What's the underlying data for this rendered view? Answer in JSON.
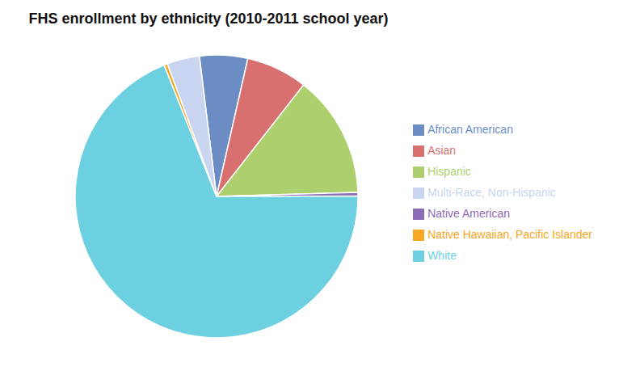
{
  "chart_data": {
    "type": "pie",
    "title": "FHS enrollment by ethnicity (2010-2011 school year)",
    "categories": [
      "African American",
      "Asian",
      "Hispanic",
      "Native American",
      "White",
      "Native Hawaiian, Pacific Islander",
      "Multi-Race, Non-Hispanic"
    ],
    "values": [
      5.5,
      7.0,
      14.0,
      0.4,
      69.0,
      0.4,
      3.7
    ],
    "colors": [
      "#6B8DC4",
      "#D97070",
      "#AECF6E",
      "#8B6BB5",
      "#6DD0E0",
      "#F5A623",
      "#C8D4F0"
    ],
    "legend": "right"
  }
}
